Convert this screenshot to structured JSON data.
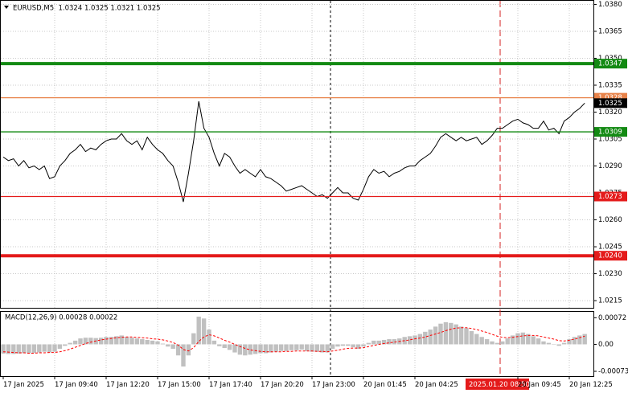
{
  "chart_data": [
    {
      "type": "line",
      "title": "EURUSD,M5  1.0324 1.0325 1.0321 1.0325",
      "crosshair_label": "2025.01.20 08:50",
      "categories": [
        "17 Jan 2025",
        null,
        null,
        null,
        null,
        null,
        null,
        null,
        null,
        null,
        "17 Jan 09:40",
        null,
        null,
        null,
        null,
        null,
        null,
        null,
        null,
        null,
        "17 Jan 12:20",
        null,
        null,
        null,
        null,
        null,
        null,
        null,
        null,
        null,
        "17 Jan 15:00",
        null,
        null,
        null,
        null,
        null,
        null,
        null,
        null,
        null,
        "17 Jan 17:40",
        null,
        null,
        null,
        null,
        null,
        null,
        null,
        null,
        null,
        "17 Jan 20:20",
        null,
        null,
        null,
        null,
        null,
        null,
        null,
        null,
        null,
        "17 Jan 23:00",
        null,
        null,
        null,
        null,
        null,
        null,
        null,
        null,
        null,
        "20 Jan 01:45",
        null,
        null,
        null,
        null,
        null,
        null,
        null,
        null,
        null,
        "20 Jan 04:25",
        null,
        null,
        null,
        null,
        null,
        null,
        null,
        null,
        null,
        null,
        null,
        null,
        null,
        null,
        null,
        null,
        null,
        null,
        null,
        "20 Jan 09:45",
        null,
        null,
        null,
        null,
        null,
        null,
        null,
        null,
        null,
        "20 Jan 12:25",
        null,
        null,
        null
      ],
      "series": [
        {
          "color": "#000000",
          "values": [
            1.0295,
            1.0293,
            1.0294,
            1.029,
            1.0293,
            1.0289,
            1.029,
            1.0288,
            1.029,
            1.0283,
            1.0284,
            1.029,
            1.0293,
            1.0297,
            1.0299,
            1.0302,
            1.0298,
            1.03,
            1.0299,
            1.0302,
            1.0304,
            1.0305,
            1.0305,
            1.0308,
            1.0304,
            1.0302,
            1.0304,
            1.0299,
            1.0306,
            1.0302,
            1.0299,
            1.0297,
            1.0293,
            1.029,
            1.0281,
            1.027,
            1.0286,
            1.0304,
            1.0326,
            1.0311,
            1.0306,
            1.0297,
            1.029,
            1.0297,
            1.0295,
            1.029,
            1.0286,
            1.0288,
            1.0286,
            1.0284,
            1.0288,
            1.0284,
            1.0283,
            1.0281,
            1.0279,
            1.0276,
            1.0277,
            1.0278,
            1.0279,
            1.0277,
            1.0275,
            1.0273,
            1.0274,
            1.0272,
            1.0275,
            1.0278,
            1.0275,
            1.0275,
            1.0272,
            1.0271,
            1.0277,
            1.0284,
            1.0288,
            1.0286,
            1.0287,
            1.0284,
            1.0286,
            1.0287,
            1.0289,
            1.029,
            1.029,
            1.0293,
            1.0295,
            1.0297,
            1.0301,
            1.0306,
            1.0308,
            1.0306,
            1.0304,
            1.0306,
            1.0304,
            1.0305,
            1.0306,
            1.0302,
            1.0304,
            1.0307,
            1.0311,
            1.0311,
            1.0313,
            1.0315,
            1.0316,
            1.0314,
            1.0313,
            1.0311,
            1.0311,
            1.0315,
            1.031,
            1.0311,
            1.0308,
            1.0315,
            1.0317,
            1.032,
            1.0322,
            1.0325
          ]
        }
      ],
      "ylim": [
        1.0211,
        1.0382
      ],
      "yticks": [
        {
          "value": 1.038,
          "label": "1.0380"
        },
        {
          "value": 1.0365,
          "label": "1.0365"
        },
        {
          "value": 1.035,
          "label": "1.0350"
        },
        {
          "value": 1.0335,
          "label": "1.0335"
        },
        {
          "value": 1.032,
          "label": "1.0320"
        },
        {
          "value": 1.0305,
          "label": "1.0305"
        },
        {
          "value": 1.029,
          "label": "1.0290"
        },
        {
          "value": 1.0275,
          "label": "1.0275"
        },
        {
          "value": 1.026,
          "label": "1.0260"
        },
        {
          "value": 1.0245,
          "label": "1.0245"
        },
        {
          "value": 1.023,
          "label": "1.0230"
        },
        {
          "value": 1.0215,
          "label": "1.0215"
        }
      ],
      "grid": true,
      "levels": [
        {
          "value": 1.0347,
          "label": "1.0347",
          "color": "#138a13",
          "bold": true
        },
        {
          "value": 1.0328,
          "label": "1.0328",
          "color": "#e8834a",
          "bold": false
        },
        {
          "value": 1.0309,
          "label": "1.0309",
          "color": "#138a13",
          "bold": false
        },
        {
          "value": 1.0273,
          "label": "1.0273",
          "color": "#e41b1b",
          "bold": false
        },
        {
          "value": 1.024,
          "label": "1.0240",
          "color": "#e41b1b",
          "bold": true
        }
      ],
      "last_price": {
        "value": 1.0325,
        "label": "1.0325",
        "color": "#000000"
      }
    },
    {
      "type": "bar",
      "title": "MACD(12,26,9) 0.00028 0.00022",
      "series": [
        {
          "type": "bar",
          "color": "#c0c0c0",
          "values": [
            -0.00025,
            -0.00026,
            -0.00026,
            -0.00025,
            -0.00024,
            -0.00024,
            -0.00023,
            -0.00022,
            -0.0002,
            -0.00022,
            -0.0002,
            -0.00012,
            -4e-05,
            4e-05,
            0.0001,
            0.00016,
            0.00018,
            0.00018,
            0.00017,
            0.00018,
            0.0002,
            0.0002,
            0.00022,
            0.00024,
            0.0002,
            0.00018,
            0.00016,
            0.00014,
            0.00012,
            0.0001,
            8e-05,
            2e-05,
            -6e-05,
            -0.00012,
            -0.0003,
            -0.0006,
            -0.0003,
            0.0003,
            0.00075,
            0.0007,
            0.0004,
            0.0001,
            -5e-05,
            -0.0001,
            -0.00015,
            -0.00022,
            -0.00028,
            -0.0003,
            -0.00028,
            -0.00026,
            -0.00024,
            -0.00024,
            -0.00022,
            -0.0002,
            -0.00018,
            -0.00018,
            -0.00016,
            -0.00016,
            -0.00014,
            -0.00018,
            -0.0002,
            -0.0002,
            -0.00022,
            -0.00022,
            -0.00012,
            -6e-05,
            -4e-05,
            -4e-05,
            -8e-05,
            -0.00012,
            -6e-05,
            4e-05,
            0.0001,
            0.0001,
            0.00012,
            0.00014,
            0.00014,
            0.00016,
            0.0002,
            0.00022,
            0.00024,
            0.00028,
            0.00034,
            0.0004,
            0.00048,
            0.00056,
            0.0006,
            0.00058,
            0.00054,
            0.00048,
            0.00044,
            0.00036,
            0.00028,
            0.0002,
            0.00014,
            8e-05,
            4e-05,
            8e-05,
            0.00016,
            0.00024,
            0.0003,
            0.00032,
            0.00028,
            0.00022,
            0.00016,
            8e-05,
            4e-05,
            0,
            -4e-05,
            4e-05,
            0.00014,
            0.0002,
            0.00024,
            0.00028
          ]
        },
        {
          "type": "line",
          "color": "#ff0000",
          "dashed": true,
          "values": [
            -0.0002,
            -0.00021,
            -0.00022,
            -0.00023,
            -0.00023,
            -0.00024,
            -0.00024,
            -0.00023,
            -0.00023,
            -0.00022,
            -0.00022,
            -0.0002,
            -0.00017,
            -0.00013,
            -8e-05,
            -3e-05,
            2e-05,
            6e-05,
            9e-05,
            0.00012,
            0.00014,
            0.00016,
            0.00018,
            0.00019,
            0.0002,
            0.0002,
            0.00019,
            0.00018,
            0.00017,
            0.00015,
            0.00014,
            0.00012,
            9e-05,
            5e-05,
            -2e-05,
            -0.00014,
            -0.00018,
            -9e-05,
            8e-05,
            0.0002,
            0.00026,
            0.00023,
            0.00017,
            0.00011,
            6e-05,
            0,
            -6e-05,
            -0.00011,
            -0.00015,
            -0.00017,
            -0.00019,
            -0.0002,
            -0.0002,
            -0.0002,
            -0.0002,
            -0.00019,
            -0.00019,
            -0.00018,
            -0.00018,
            -0.00018,
            -0.00018,
            -0.00019,
            -0.00019,
            -0.0002,
            -0.00018,
            -0.00016,
            -0.00013,
            -0.00011,
            -0.0001,
            -0.0001,
            -9e-05,
            -6e-05,
            -3e-05,
            0,
            2e-05,
            4e-05,
            6e-05,
            8e-05,
            0.0001,
            0.00012,
            0.00015,
            0.00017,
            0.0002,
            0.00024,
            0.00028,
            0.00032,
            0.00037,
            0.00041,
            0.00044,
            0.00045,
            0.00045,
            0.00043,
            0.0004,
            0.00036,
            0.00032,
            0.00027,
            0.00022,
            0.00019,
            0.00018,
            0.00019,
            0.00021,
            0.00023,
            0.00024,
            0.00024,
            0.00023,
            0.0002,
            0.00017,
            0.00014,
            0.0001,
            9e-05,
            0.00011,
            0.00014,
            0.00018,
            0.00022
          ]
        }
      ],
      "ylim": [
        -0.00086,
        0.00088
      ],
      "yticks": [
        0.00072,
        {
          "value": 0,
          "label": "0.00"
        },
        -0.00073
      ],
      "grid": false
    }
  ]
}
